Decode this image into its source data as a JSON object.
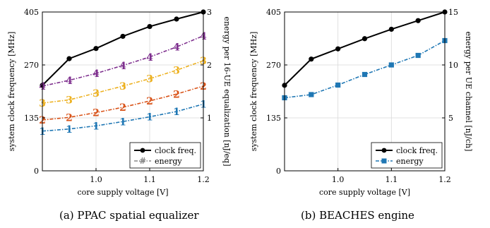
{
  "chart_data": [
    {
      "type": "line",
      "caption": "(a) PPAC spatial equalizer",
      "xlabel": "core supply voltage [V]",
      "ylabel_left": "system clock frequency [MHz]",
      "ylabel_right": "energy per 16-UE equalization [nJ/eq]",
      "x_ticks": [
        "1.0",
        "1.1",
        "1.2"
      ],
      "y_left_ticks": [
        "0",
        "135",
        "270",
        "405"
      ],
      "y_right_ticks": [
        "1",
        "2",
        "3"
      ],
      "xlim": [
        0.9,
        1.2
      ],
      "ylim_left": [
        0,
        405
      ],
      "ylim_right": [
        0,
        3
      ],
      "legend_position": "bottom-right",
      "legend": [
        "clock freq.",
        "energy"
      ],
      "series": [
        {
          "name": "clock freq.",
          "axis": "left",
          "color": "#000000",
          "marker": "circle",
          "x": [
            0.9,
            0.95,
            1.0,
            1.05,
            1.1,
            1.15,
            1.2
          ],
          "y": [
            218,
            286,
            312,
            343,
            368,
            387,
            405
          ]
        },
        {
          "name": "1",
          "axis": "right",
          "color": "#1f77b4",
          "marker": "digit",
          "x": [
            0.9,
            0.95,
            1.0,
            1.05,
            1.1,
            1.15,
            1.2
          ],
          "y": [
            0.75,
            0.79,
            0.85,
            0.93,
            1.02,
            1.12,
            1.26
          ]
        },
        {
          "name": "2",
          "axis": "right",
          "color": "#d95319",
          "marker": "digit",
          "x": [
            0.9,
            0.95,
            1.0,
            1.05,
            1.1,
            1.15,
            1.2
          ],
          "y": [
            0.96,
            1.01,
            1.1,
            1.2,
            1.32,
            1.45,
            1.6
          ]
        },
        {
          "name": "3",
          "axis": "right",
          "color": "#edb120",
          "marker": "digit",
          "x": [
            0.9,
            0.95,
            1.0,
            1.05,
            1.1,
            1.15,
            1.2
          ],
          "y": [
            1.28,
            1.34,
            1.47,
            1.6,
            1.74,
            1.9,
            2.08
          ]
        },
        {
          "name": "4",
          "axis": "right",
          "color": "#7e2f8e",
          "marker": "digit",
          "x": [
            0.9,
            0.95,
            1.0,
            1.05,
            1.1,
            1.15,
            1.2
          ],
          "y": [
            1.6,
            1.71,
            1.84,
            1.99,
            2.15,
            2.34,
            2.55
          ]
        }
      ]
    },
    {
      "type": "line",
      "caption": "(b) BEACHES engine",
      "xlabel": "core supply voltage [V]",
      "ylabel_left": "system clock frequency [MHz]",
      "ylabel_right": "energy per UE channel [nJ/ch]",
      "x_ticks": [
        "1.0",
        "1.1",
        "1.2"
      ],
      "y_left_ticks": [
        "0",
        "135",
        "270",
        "405"
      ],
      "y_right_ticks": [
        "5",
        "10",
        "15"
      ],
      "xlim": [
        0.9,
        1.2
      ],
      "ylim_left": [
        0,
        405
      ],
      "ylim_right": [
        0,
        15
      ],
      "legend_position": "bottom-right",
      "legend": [
        "clock freq.",
        "energy"
      ],
      "series": [
        {
          "name": "clock freq.",
          "axis": "left",
          "color": "#000000",
          "marker": "circle",
          "x": [
            0.9,
            0.95,
            1.0,
            1.05,
            1.1,
            1.15,
            1.2
          ],
          "y": [
            218,
            285,
            311,
            337,
            361,
            383,
            405
          ]
        },
        {
          "name": "energy",
          "axis": "right",
          "color": "#1f77b4",
          "marker": "square",
          "x": [
            0.9,
            0.95,
            1.0,
            1.05,
            1.1,
            1.15,
            1.2
          ],
          "y": [
            6.9,
            7.2,
            8.1,
            9.1,
            10.0,
            10.9,
            12.3
          ]
        }
      ]
    }
  ]
}
